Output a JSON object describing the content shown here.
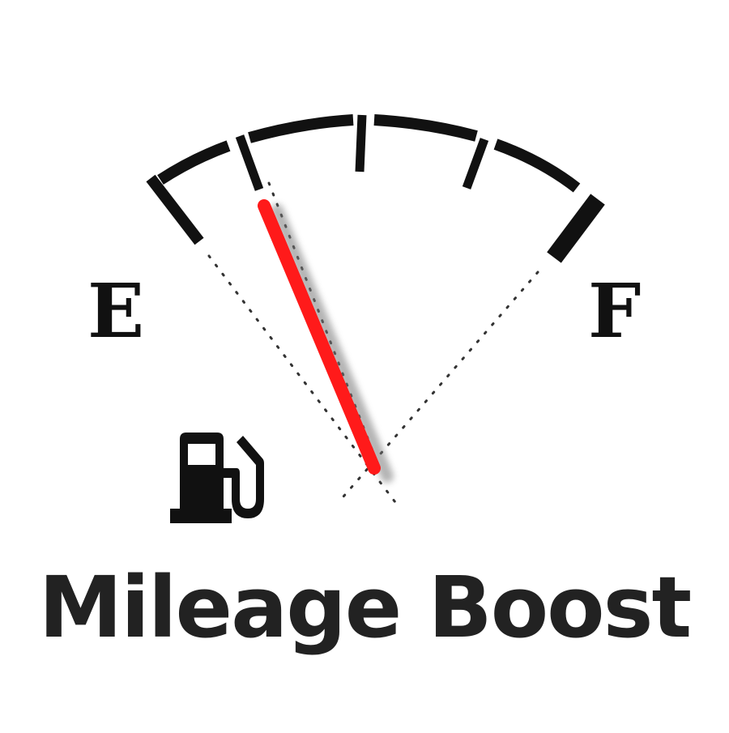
{
  "gauge": {
    "empty_label": "E",
    "full_label": "F",
    "level": 0.2,
    "needle_color": "#ff1a1a",
    "tick_color": "#111111"
  },
  "icon": "fuel-pump-icon",
  "brand": {
    "title": "Mileage Boost"
  }
}
